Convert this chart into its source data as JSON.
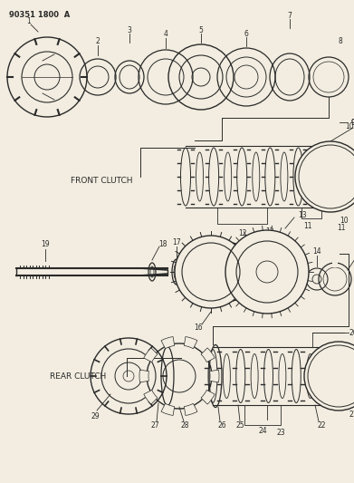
{
  "title_code": "90351 1800  A",
  "bg_color": "#f2ede0",
  "line_color": "#2a2a2a",
  "front_clutch_label": "FRONT CLUTCH",
  "rear_clutch_label": "REAR CLUTCH",
  "figw": 3.91,
  "figh": 5.33,
  "dpi": 100
}
